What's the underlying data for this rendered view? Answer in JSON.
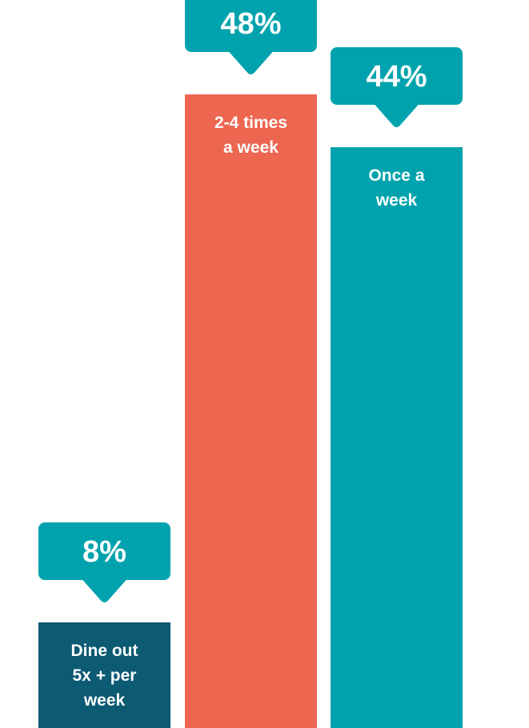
{
  "chart_data": {
    "type": "bar",
    "title": "",
    "xlabel": "",
    "ylabel": "",
    "ylim": [
      0,
      48
    ],
    "grid": false,
    "categories": [
      "Dine out 5x + per week",
      "2-4 times a week",
      "Once a week"
    ],
    "bar_label_lines": [
      [
        "Dine out",
        "5x + per",
        "week"
      ],
      [
        "2-4 times",
        "a week"
      ],
      [
        "Once a",
        "week"
      ]
    ],
    "values": [
      8,
      48,
      44
    ],
    "value_labels": [
      "8%",
      "48%",
      "44%"
    ],
    "colors": {
      "bars": [
        "#0d5a73",
        "#ec6650",
        "#00a3ad"
      ],
      "callout": "#00a3ad",
      "text": "#ffffff"
    }
  }
}
